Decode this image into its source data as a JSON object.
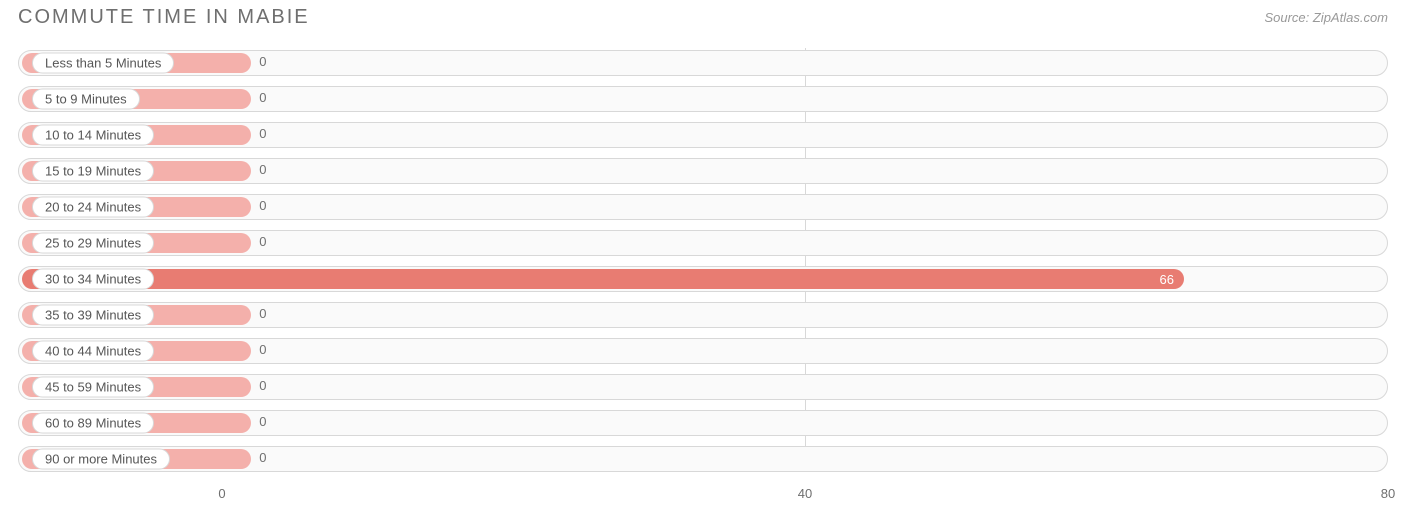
{
  "title": "COMMUTE TIME IN MABIE",
  "source": "Source: ZipAtlas.com",
  "chart": {
    "type": "bar-horizontal",
    "xmin": -14,
    "xmax": 80,
    "x_ticks": [
      0,
      40,
      80
    ],
    "gridlines": [
      40
    ],
    "bar_fill_normal": "#f4b0ab",
    "bar_fill_highlight": "#e87c72",
    "track_border": "#d8d8d8",
    "track_bg": "#fafafa",
    "label_bg": "#ffffff",
    "label_text": "#565656",
    "value_text_out": "#6f6f6f",
    "value_text_in": "#ffffff",
    "min_bar_value": 2,
    "items": [
      {
        "label": "Less than 5 Minutes",
        "value": 0,
        "highlight": false
      },
      {
        "label": "5 to 9 Minutes",
        "value": 0,
        "highlight": false
      },
      {
        "label": "10 to 14 Minutes",
        "value": 0,
        "highlight": false
      },
      {
        "label": "15 to 19 Minutes",
        "value": 0,
        "highlight": false
      },
      {
        "label": "20 to 24 Minutes",
        "value": 0,
        "highlight": false
      },
      {
        "label": "25 to 29 Minutes",
        "value": 0,
        "highlight": false
      },
      {
        "label": "30 to 34 Minutes",
        "value": 66,
        "highlight": true
      },
      {
        "label": "35 to 39 Minutes",
        "value": 0,
        "highlight": false
      },
      {
        "label": "40 to 44 Minutes",
        "value": 0,
        "highlight": false
      },
      {
        "label": "45 to 59 Minutes",
        "value": 0,
        "highlight": false
      },
      {
        "label": "60 to 89 Minutes",
        "value": 0,
        "highlight": false
      },
      {
        "label": "90 or more Minutes",
        "value": 0,
        "highlight": false
      }
    ]
  }
}
